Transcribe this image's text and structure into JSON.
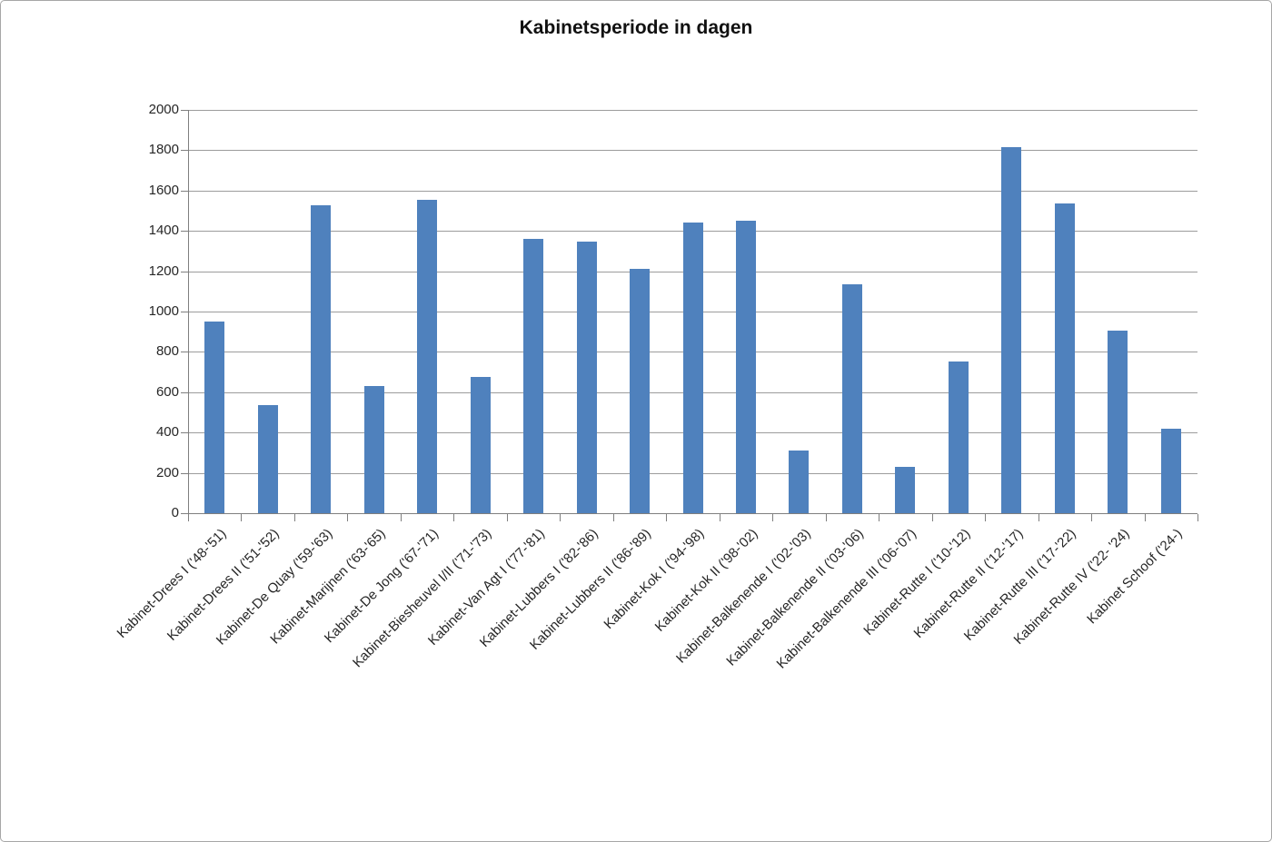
{
  "chart_data": {
    "type": "bar",
    "title": "Kabinetsperiode in dagen",
    "xlabel": "",
    "ylabel": "",
    "categories": [
      "Kabinet-Drees I ('48-'51)",
      "Kabinet-Drees II ('51-'52)",
      "Kabinet-De Quay ('59-'63)",
      "Kabinet-Marijnen ('63-'65)",
      "Kabinet-De Jong ('67-'71)",
      "Kabinet-Biesheuvel I/II ('71-'73)",
      "Kabinet-Van Agt I ('77-'81)",
      "Kabinet-Lubbers I ('82-'86)",
      "Kabinet-Lubbers II ('86-'89)",
      "Kabinet-Kok I ('94-'98)",
      "Kabinet-Kok II ('98-'02)",
      "Kabinet-Balkenende I ('02-'03)",
      "Kabinet-Balkenende II ('03-'06)",
      "Kabinet-Balkenende III ('06-'07)",
      "Kabinet-Rutte I ('10-'12)",
      "Kabinet-Rutte II ('12-'17)",
      "Kabinet-Rutte III ('17-'22)",
      "Kabinet-Rutte IV ('22- '24)",
      "Kabinet Schoof ('24-)"
    ],
    "values": [
      950,
      537,
      1527,
      630,
      1553,
      675,
      1362,
      1348,
      1212,
      1442,
      1449,
      309,
      1137,
      230,
      753,
      1816,
      1537,
      904,
      420
    ],
    "ylim": [
      0,
      2000
    ],
    "ytick_step": 200,
    "grid": true,
    "legend": false,
    "bar_color": "#4f81bd",
    "gridline_color": "#9c9c9c",
    "axis_color": "#7f7f7f",
    "text_color": "#262626"
  }
}
